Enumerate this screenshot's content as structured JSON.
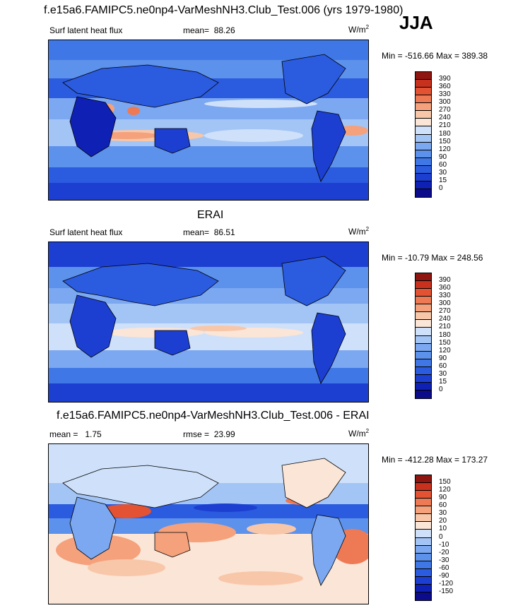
{
  "title": "f.e15a6.FAMIPC5.ne0np4-VarMeshNH3.Club_Test.006 (yrs 1979-1980)",
  "season": "JJA",
  "panels": [
    {
      "heading": "",
      "variable": "Surf latent heat flux",
      "stat_label": "mean=",
      "stat_value": "88.26",
      "unit": "W/m",
      "unit_sup": "2",
      "minmax": "Min = -516.66 Max = 389.38"
    },
    {
      "heading": "ERAI",
      "variable": "Surf latent heat flux",
      "stat_label": "mean=",
      "stat_value": "86.51",
      "unit": "W/m",
      "unit_sup": "2",
      "minmax": "Min = -10.79 Max = 248.56"
    },
    {
      "heading": "f.e15a6.FAMIPC5.ne0np4-VarMeshNH3.Club_Test.006 - ERAI",
      "variable": "mean =",
      "variable_value": "1.75",
      "stat_label": "rmse =",
      "stat_value": "23.99",
      "unit": "W/m",
      "unit_sup": "2",
      "minmax": "Min = -412.28 Max = 173.27"
    }
  ],
  "colors": {
    "abs_scale": [
      "#0b0b8c",
      "#0f21b5",
      "#1c3fd1",
      "#2b5bdf",
      "#3f78e6",
      "#5c91ec",
      "#7ba8f1",
      "#a3c5f6",
      "#cfe1fa",
      "#fbe5d6",
      "#f8c7a9",
      "#f4a17c",
      "#ee7a55",
      "#e35233",
      "#c8311e",
      "#8f1510"
    ],
    "diff_scale": [
      "#0b0b8c",
      "#0f21b5",
      "#1c3fd1",
      "#2b5bdf",
      "#3f78e6",
      "#5c91ec",
      "#7ba8f1",
      "#a3c5f6",
      "#cfe1fa",
      "#fbe5d6",
      "#f8c7a9",
      "#f4a17c",
      "#ee7a55",
      "#e35233",
      "#c8311e",
      "#8f1510"
    ]
  },
  "chart_data": [
    {
      "type": "heatmap",
      "title": "Surf latent heat flux",
      "units": "W/m2",
      "mean": 88.26,
      "min": -516.66,
      "max": 389.38,
      "colorbar_levels": [
        0,
        15,
        30,
        60,
        90,
        120,
        150,
        180,
        210,
        240,
        270,
        300,
        330,
        360,
        390
      ],
      "colorbar_labels": [
        "390",
        "360",
        "330",
        "300",
        "270",
        "240",
        "210",
        "180",
        "150",
        "120",
        "90",
        "60",
        "30",
        "15",
        "0"
      ]
    },
    {
      "type": "heatmap",
      "title": "ERAI",
      "units": "W/m2",
      "mean": 86.51,
      "min": -10.79,
      "max": 248.56,
      "colorbar_levels": [
        0,
        15,
        30,
        60,
        90,
        120,
        150,
        180,
        210,
        240,
        270,
        300,
        330,
        360,
        390
      ],
      "colorbar_labels": [
        "390",
        "360",
        "330",
        "300",
        "270",
        "240",
        "210",
        "180",
        "150",
        "120",
        "90",
        "60",
        "30",
        "15",
        "0"
      ]
    },
    {
      "type": "heatmap",
      "title": "f.e15a6.FAMIPC5.ne0np4-VarMeshNH3.Club_Test.006 - ERAI",
      "units": "W/m2",
      "mean": 1.75,
      "rmse": 23.99,
      "min": -412.28,
      "max": 173.27,
      "colorbar_levels": [
        -150,
        -120,
        -90,
        -60,
        -30,
        -20,
        -10,
        0,
        10,
        20,
        30,
        60,
        90,
        120,
        150
      ],
      "colorbar_labels": [
        "150",
        "120",
        "90",
        "60",
        "30",
        "20",
        "10",
        "0",
        "-10",
        "-20",
        "-30",
        "-60",
        "-90",
        "-120",
        "-150"
      ]
    }
  ]
}
